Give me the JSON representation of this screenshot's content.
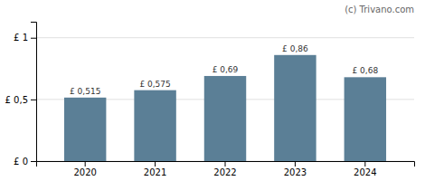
{
  "chart_data": {
    "type": "bar",
    "categories": [
      "2020",
      "2021",
      "2022",
      "2023",
      "2024"
    ],
    "values": [
      0.515,
      0.575,
      0.69,
      0.86,
      0.68
    ],
    "value_labels": [
      "£ 0,515",
      "£ 0,575",
      "£ 0,69",
      "£ 0,86",
      "£ 0,68"
    ],
    "color": "#5b7f96",
    "ylim": [
      0,
      1.13
    ],
    "yticks": [
      {
        "value": 0.0,
        "label": "£ 0"
      },
      {
        "value": 0.5,
        "label": "£ 0,5"
      },
      {
        "value": 1.0,
        "label": "£ 1"
      }
    ],
    "grid": true,
    "data_labels": true,
    "annotations": [
      "(c) Trivano.com"
    ]
  }
}
